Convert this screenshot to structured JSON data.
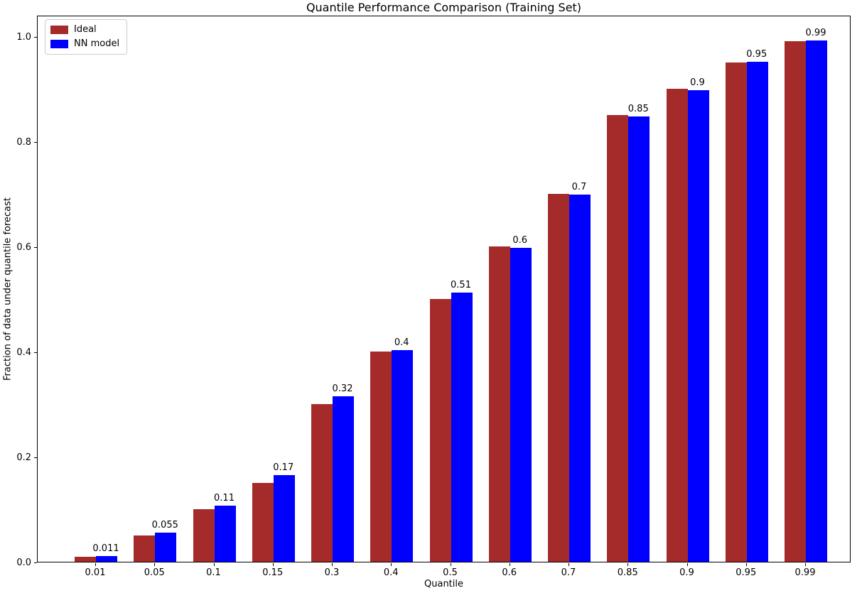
{
  "chart_data": {
    "type": "bar",
    "title": "Quantile Performance Comparison (Training Set)",
    "xlabel": "Quantile",
    "ylabel": "Fraction of data under quantile forecast",
    "categories": [
      "0.01",
      "0.05",
      "0.1",
      "0.15",
      "0.3",
      "0.4",
      "0.5",
      "0.6",
      "0.7",
      "0.85",
      "0.9",
      "0.95",
      "0.99"
    ],
    "series": [
      {
        "name": "Ideal",
        "color": "#A52A2A",
        "values": [
          0.01,
          0.05,
          0.1,
          0.15,
          0.3,
          0.4,
          0.5,
          0.6,
          0.7,
          0.85,
          0.9,
          0.95,
          0.99
        ]
      },
      {
        "name": "NN model",
        "color": "#0000FF",
        "values": [
          0.011,
          0.055,
          0.107,
          0.165,
          0.315,
          0.403,
          0.512,
          0.597,
          0.698,
          0.847,
          0.897,
          0.951,
          0.992
        ],
        "bar_labels": [
          "0.011",
          "0.055",
          "0.11",
          "0.17",
          "0.32",
          "0.4",
          "0.51",
          "0.6",
          "0.7",
          "0.85",
          "0.9",
          "0.95",
          "0.99"
        ]
      }
    ],
    "yticks": [
      "0.0",
      "0.2",
      "0.4",
      "0.6",
      "0.8",
      "1.0"
    ],
    "ylim": [
      0,
      1.04
    ],
    "grid": false,
    "legend_position": "upper left",
    "axis_color": "#000000",
    "background_color": "#ffffff"
  }
}
